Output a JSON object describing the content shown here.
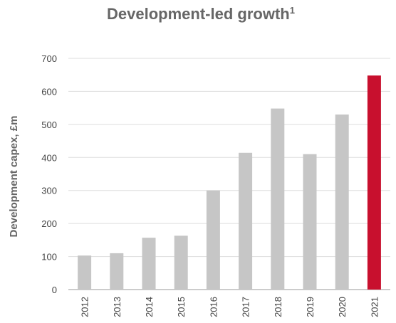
{
  "chart_data": {
    "type": "bar",
    "title": "Development-led growth",
    "title_superscript": "1",
    "ylabel": "Development capex, £m",
    "xlabel": "",
    "categories": [
      "2012",
      "2013",
      "2014",
      "2015",
      "2016",
      "2017",
      "2018",
      "2019",
      "2020",
      "2021"
    ],
    "values": [
      103,
      110,
      157,
      163,
      300,
      414,
      548,
      410,
      530,
      648
    ],
    "ylim": [
      0,
      700
    ],
    "yticks": [
      0,
      100,
      200,
      300,
      400,
      500,
      600,
      700
    ],
    "grid": true,
    "colors": {
      "default_bar": "#c6c6c6",
      "highlight_bar": "#c8102e",
      "grid": "#dddddd",
      "axis": "#999999"
    },
    "highlight_category": "2021"
  }
}
